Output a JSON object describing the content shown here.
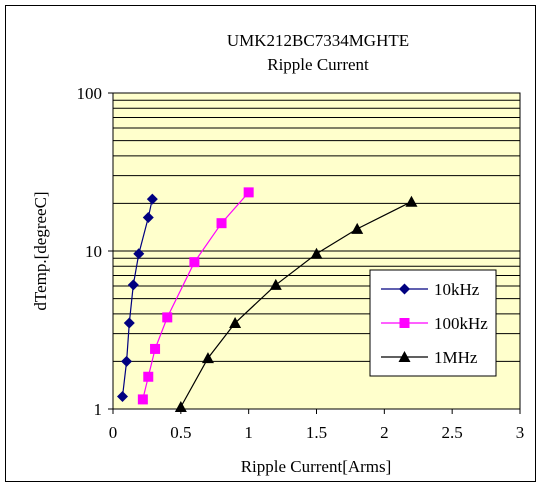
{
  "chart_data": {
    "type": "line",
    "title": "UMK212BC7334MGHTE",
    "subtitle": "Ripple Current",
    "xlabel": "Ripple Current[Arms]",
    "ylabel": "dTemp.[degreeC]",
    "xlim": [
      0,
      3
    ],
    "ylim": [
      1,
      100
    ],
    "yscale": "log",
    "x_ticks": [
      "0",
      "0.5",
      "1",
      "1.5",
      "2",
      "2.5",
      "3"
    ],
    "y_ticks": [
      "1",
      "10",
      "100"
    ],
    "grid": true,
    "legend_position": "right",
    "plot_background": "#FFFFCC",
    "series": [
      {
        "name": "10kHz",
        "color": "#000080",
        "marker": "diamond",
        "points": [
          {
            "x": 0.07,
            "y": 1.2
          },
          {
            "x": 0.1,
            "y": 2.0
          },
          {
            "x": 0.12,
            "y": 3.5
          },
          {
            "x": 0.15,
            "y": 6.1
          },
          {
            "x": 0.19,
            "y": 9.6
          },
          {
            "x": 0.26,
            "y": 16.3
          },
          {
            "x": 0.29,
            "y": 21.3
          }
        ]
      },
      {
        "name": "100kHz",
        "color": "#FF00FF",
        "marker": "square",
        "points": [
          {
            "x": 0.22,
            "y": 1.15
          },
          {
            "x": 0.26,
            "y": 1.6
          },
          {
            "x": 0.31,
            "y": 2.4
          },
          {
            "x": 0.4,
            "y": 3.8
          },
          {
            "x": 0.6,
            "y": 8.5
          },
          {
            "x": 0.8,
            "y": 15.0
          },
          {
            "x": 1.0,
            "y": 23.5
          }
        ]
      },
      {
        "name": "1MHz",
        "color": "#000000",
        "marker": "triangle",
        "points": [
          {
            "x": 0.5,
            "y": 1.03
          },
          {
            "x": 0.7,
            "y": 2.1
          },
          {
            "x": 0.9,
            "y": 3.5
          },
          {
            "x": 1.2,
            "y": 6.1
          },
          {
            "x": 1.5,
            "y": 9.6
          },
          {
            "x": 1.8,
            "y": 13.8
          },
          {
            "x": 2.2,
            "y": 20.5
          }
        ]
      }
    ]
  }
}
